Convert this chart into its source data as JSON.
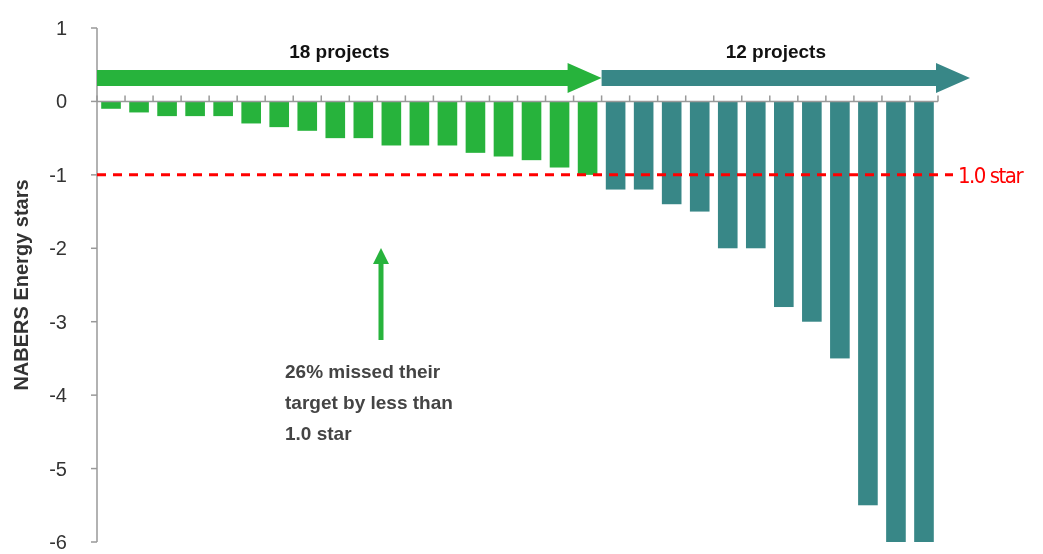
{
  "chart_data": {
    "type": "bar",
    "ylabel": "NABERS Energy stars",
    "categories": [
      null,
      null,
      null,
      null,
      null,
      null,
      null,
      null,
      null,
      null,
      null,
      null,
      null,
      null,
      null,
      null,
      null,
      null,
      null,
      null,
      null,
      null,
      null,
      null,
      null,
      null,
      null,
      null,
      null,
      null
    ],
    "values": [
      -0.1,
      -0.15,
      -0.2,
      -0.2,
      -0.2,
      -0.3,
      -0.35,
      -0.4,
      -0.5,
      -0.5,
      -0.6,
      -0.6,
      -0.6,
      -0.7,
      -0.75,
      -0.8,
      -0.9,
      -1.0,
      -1.2,
      -1.2,
      -1.4,
      -1.5,
      -2,
      -2,
      -2.8,
      -3,
      -3.5,
      -5.5,
      -6,
      -6
    ],
    "colors": [
      "#27b33c",
      "#27b33c",
      "#27b33c",
      "#27b33c",
      "#27b33c",
      "#27b33c",
      "#27b33c",
      "#27b33c",
      "#27b33c",
      "#27b33c",
      "#27b33c",
      "#27b33c",
      "#27b33c",
      "#27b33c",
      "#27b33c",
      "#27b33c",
      "#27b33c",
      "#27b33c",
      "#388787",
      "#388787",
      "#388787",
      "#388787",
      "#388787",
      "#388787",
      "#388787",
      "#388787",
      "#388787",
      "#388787",
      "#388787",
      "#388787"
    ],
    "ylim": [
      -6,
      1
    ],
    "yticks": [
      -6,
      -5,
      -4,
      -3,
      -2,
      -1,
      0,
      1
    ],
    "grid": false,
    "ref_lines": [
      {
        "axis": "y",
        "value": -1,
        "label": "1.0 star",
        "color": "#ff0000",
        "line_style": "dashed"
      }
    ],
    "annotations": [
      "18 projects",
      "12 projects",
      "26% missed their target by less than 1.0 star"
    ]
  }
}
